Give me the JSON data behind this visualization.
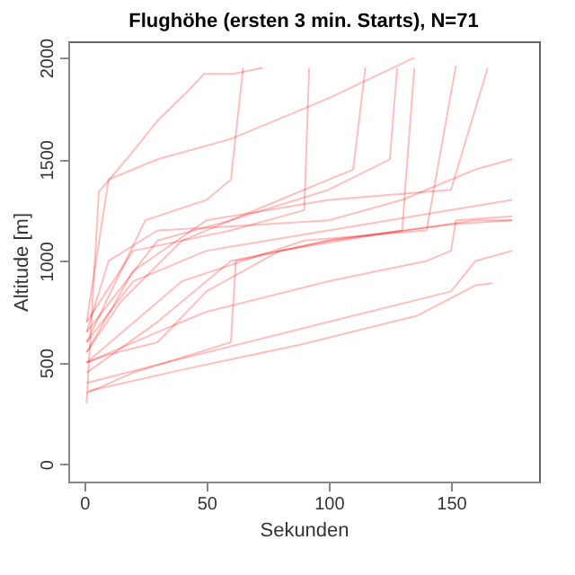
{
  "chart_data": {
    "type": "line",
    "title": "Flughöhe (ersten 3 min. Starts), N=71",
    "xlabel": "Sekunden",
    "ylabel": "Altitude [m]",
    "xlim": [
      -6.5,
      186
    ],
    "ylim": [
      -85,
      2080
    ],
    "xticks": [
      0,
      50,
      100,
      150
    ],
    "yticks": [
      0,
      500,
      1000,
      1500,
      2000
    ],
    "grid": false,
    "legend": false,
    "marker": "none",
    "line_style": "solid",
    "series": [
      {
        "color": "#ff0000",
        "x": [
          1,
          6,
          18,
          30,
          42,
          49,
          61,
          73
        ],
        "values": [
          300,
          1340,
          1510,
          1690,
          1830,
          1920,
          1920,
          1950
        ]
      },
      {
        "color": "#ff0000",
        "x": [
          1.7,
          42,
          89,
          136,
          160,
          167
        ],
        "values": [
          360,
          470,
          590,
          730,
          880,
          890
        ]
      },
      {
        "color": "#ff0000",
        "x": [
          1,
          40,
          100,
          150,
          160,
          175
        ],
        "values": [
          400,
          520,
          700,
          850,
          1000,
          1050
        ]
      },
      {
        "color": "#ff0000",
        "x": [
          1,
          10,
          30,
          50,
          80,
          120,
          160,
          175
        ],
        "values": [
          500,
          540,
          600,
          850,
          1050,
          1130,
          1200,
          1200
        ]
      },
      {
        "color": "#ff0000",
        "x": [
          1,
          20,
          50,
          100,
          150,
          175
        ],
        "values": [
          600,
          900,
          1050,
          1150,
          1250,
          1300
        ]
      },
      {
        "color": "#ff0000",
        "x": [
          1,
          10,
          30,
          60,
          100,
          130,
          160,
          175
        ],
        "values": [
          650,
          1000,
          1150,
          1170,
          1200,
          1300,
          1450,
          1500
        ]
      },
      {
        "color": "#ff0000",
        "x": [
          1,
          20,
          60,
          90,
          92
        ],
        "values": [
          700,
          1050,
          1150,
          1250,
          1950
        ]
      },
      {
        "color": "#ff0000",
        "x": [
          1,
          15,
          40,
          80,
          110,
          115
        ],
        "values": [
          550,
          800,
          1100,
          1300,
          1450,
          1950
        ]
      },
      {
        "color": "#ff0000",
        "x": [
          1,
          30,
          60,
          100,
          130,
          135
        ],
        "values": [
          450,
          700,
          1000,
          1100,
          1150,
          1950
        ]
      },
      {
        "color": "#ff0000",
        "x": [
          1,
          40,
          90,
          140,
          152
        ],
        "values": [
          500,
          900,
          1100,
          1150,
          1960
        ]
      },
      {
        "color": "#ff0000",
        "x": [
          1,
          25,
          50,
          60,
          65
        ],
        "values": [
          600,
          1200,
          1300,
          1400,
          1950
        ]
      },
      {
        "color": "#ff0000",
        "x": [
          1,
          10,
          30,
          60,
          100,
          135
        ],
        "values": [
          700,
          1400,
          1500,
          1600,
          1800,
          2000
        ]
      },
      {
        "color": "#ff0000",
        "x": [
          1,
          20,
          60,
          62,
          100,
          150,
          175
        ],
        "values": [
          350,
          450,
          600,
          1000,
          1100,
          1180,
          1200
        ]
      },
      {
        "color": "#ff0000",
        "x": [
          1,
          30,
          50,
          100,
          140,
          150,
          152,
          175
        ],
        "values": [
          500,
          650,
          750,
          900,
          1000,
          1050,
          1200,
          1220
        ]
      },
      {
        "color": "#ff0000",
        "x": [
          1,
          20,
          50,
          100,
          150,
          165
        ],
        "values": [
          550,
          950,
          1200,
          1300,
          1350,
          1950
        ]
      },
      {
        "color": "#ff0000",
        "x": [
          1,
          30,
          60,
          100,
          125,
          128
        ],
        "values": [
          650,
          1100,
          1200,
          1350,
          1500,
          1950
        ]
      }
    ]
  }
}
